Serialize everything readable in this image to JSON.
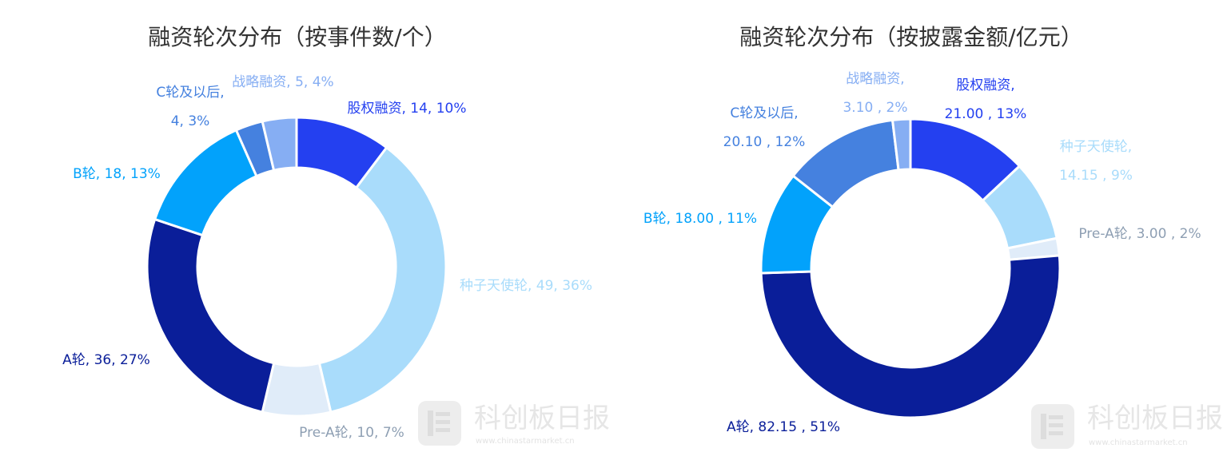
{
  "chart_data": [
    {
      "type": "pie",
      "donut": true,
      "title": "融资轮次分布（按事件数/个）",
      "categories": [
        "股权融资",
        "种子天使轮",
        "Pre-A轮",
        "A轮",
        "B轮",
        "C轮及以后",
        "战略融资"
      ],
      "values": [
        14,
        49,
        10,
        36,
        18,
        4,
        5
      ],
      "labels": [
        "股权融资, 14, 10%",
        "种子天使轮, 49, 36%",
        "Pre-A轮, 10, 7%",
        "A轮, 36, 27%",
        "B轮, 18, 13%",
        [
          "C轮及以后,",
          "4, 3%"
        ],
        "战略融资, 5, 4%"
      ],
      "colors": [
        "#2440f0",
        "#a9dcfb",
        "#e0ecf9",
        "#0a1e99",
        "#02a2fb",
        "#4581df",
        "#86aef3"
      ]
    },
    {
      "type": "pie",
      "donut": true,
      "title": "融资轮次分布（按披露金额/亿元）",
      "categories": [
        "股权融资",
        "种子天使轮",
        "Pre-A轮",
        "A轮",
        "B轮",
        "C轮及以后",
        "战略融资"
      ],
      "values": [
        21.0,
        14.15,
        3.0,
        82.15,
        18.0,
        20.1,
        3.1
      ],
      "labels": [
        [
          "股权融资,",
          "21.00 , 13%"
        ],
        [
          "种子天使轮,",
          "14.15 , 9%"
        ],
        "Pre-A轮, 3.00 , 2%",
        "A轮, 82.15 , 51%",
        "B轮, 18.00 , 11%",
        [
          "C轮及以后,",
          "20.10 , 12%"
        ],
        [
          "战略融资,",
          "3.10 , 2%"
        ]
      ],
      "colors": [
        "#2440f0",
        "#a9dcfb",
        "#e0ecf9",
        "#0a1e99",
        "#02a2fb",
        "#4581df",
        "#86aef3"
      ]
    }
  ],
  "watermark": {
    "text": "科创板日报",
    "url": "www.chinastarmarket.cn"
  }
}
